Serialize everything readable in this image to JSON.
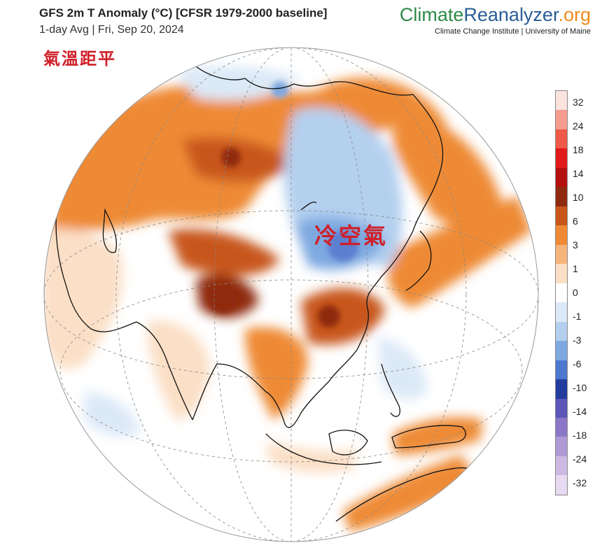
{
  "header": {
    "title": "GFS 2m T Anomaly (°C) [CFSR 1979-2000 baseline]",
    "subtitle": "1-day Avg | Fri, Sep 20, 2024"
  },
  "brand": {
    "logo_part1": "Climate",
    "logo_part2": "Reanalyzer",
    "logo_part3": ".org",
    "sub": "Climate Change Institute | University of Maine",
    "colors": {
      "green": "#2f8a49",
      "blue": "#2a5d96",
      "orange": "#f08a1c"
    }
  },
  "annotations": {
    "top_left": "氣溫距平",
    "map_label": "冷空氣",
    "color": "#d0202a"
  },
  "legend": {
    "labels": [
      "32",
      "24",
      "18",
      "14",
      "10",
      "6",
      "3",
      "1",
      "0",
      "-1",
      "-3",
      "-6",
      "-10",
      "-14",
      "-18",
      "-24",
      "-32"
    ],
    "colors": [
      "#fbe3de",
      "#f59c8e",
      "#ee5a47",
      "#e01a1a",
      "#b51010",
      "#8f2a10",
      "#c8561a",
      "#ee8a36",
      "#f7b47a",
      "#fbdfc6",
      "#ffffff",
      "#dce9f7",
      "#b4d0ef",
      "#7da9e0",
      "#4d78cf",
      "#233d9e",
      "#5b56b8",
      "#8a77c8",
      "#b09ad6",
      "#cdb9e4",
      "#e7daf1"
    ]
  },
  "map": {
    "projection": "orthographic",
    "region": "Asia",
    "colors": {
      "ocean_neutral": "#ffffff",
      "warm_light": "#fbdfc6",
      "warm": "#ee8a36",
      "warm_strong": "#c8561a",
      "hot": "#8f2a10",
      "cool_light": "#dce9f7",
      "cool": "#b4d0ef",
      "cold": "#7da9e0",
      "colder": "#5d7fd0",
      "coast": "#111111"
    }
  }
}
